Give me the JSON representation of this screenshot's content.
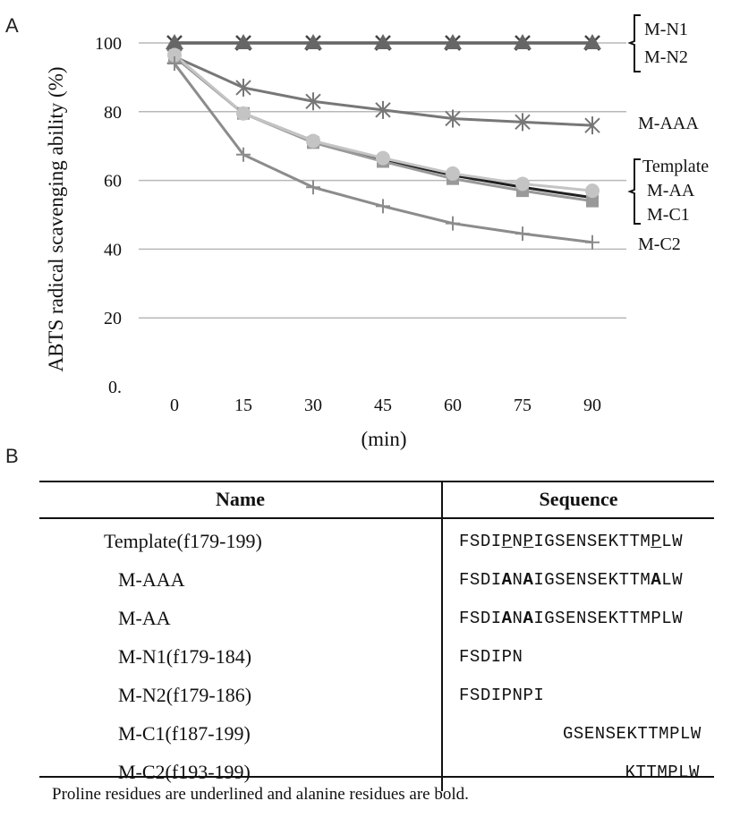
{
  "panel_a_label": "A",
  "panel_b_label": "B",
  "chart_data": {
    "type": "line",
    "xlabel": "(min)",
    "ylabel": "ABTS radical scavenging ability (%)",
    "x": [
      0,
      15,
      30,
      45,
      60,
      75,
      90
    ],
    "ytick_labels": [
      "0.",
      "20",
      "40",
      "60",
      "80",
      "100"
    ],
    "yticks": [
      0,
      20,
      40,
      60,
      80,
      100
    ],
    "ylim": [
      0,
      100
    ],
    "grid": true,
    "series": [
      {
        "key": "mn1",
        "values": [
          100,
          100,
          100,
          100,
          100,
          100,
          100
        ],
        "color": "#444444",
        "marker": "x"
      },
      {
        "key": "mn2",
        "values": [
          100,
          100,
          100,
          100,
          100,
          100,
          100
        ],
        "color": "#666666",
        "marker": "triangle"
      },
      {
        "key": "maaa",
        "values": [
          96,
          87,
          83,
          80.5,
          78,
          77,
          76
        ],
        "color": "#777777",
        "marker": "asterisk"
      },
      {
        "key": "template",
        "values": [
          96,
          79.5,
          71.5,
          66,
          61.5,
          58,
          55
        ],
        "color": "#222222",
        "marker": "none"
      },
      {
        "key": "maa",
        "values": [
          96,
          79.5,
          71,
          65.5,
          60.5,
          57,
          54
        ],
        "color": "#999999",
        "marker": "square"
      },
      {
        "key": "mc1",
        "values": [
          96.5,
          79.5,
          71.5,
          66.5,
          62,
          59,
          57
        ],
        "color": "#c4c4c4",
        "marker": "circle"
      },
      {
        "key": "mc2",
        "values": [
          94,
          67.5,
          58,
          52.5,
          47.5,
          44.5,
          42
        ],
        "color": "#8c8c8c",
        "marker": "plus"
      }
    ],
    "annotations": {
      "mn1": "M-N1",
      "mn2": "M-N2",
      "maaa": "M-AAA",
      "template": "Template",
      "maa": "M-AA",
      "mc1": "M-C1",
      "mc2": "M-C2"
    }
  },
  "table": {
    "headers": [
      "Name",
      "Sequence"
    ],
    "rows": [
      {
        "name": "Template(f179-199)",
        "sequence": "FSDIPNPIGSENSEKTTMPLW"
      },
      {
        "name": "M-AAA",
        "sequence": "FSDIANAIGSENSEKTTMALW"
      },
      {
        "name": "M-AA",
        "sequence": "FSDIANAIGSENSEKTTMPLW"
      },
      {
        "name": "M-N1(f179-184)",
        "sequence": "FSDIPN"
      },
      {
        "name": "M-N2(f179-186)",
        "sequence": "FSDIPNPI"
      },
      {
        "name": "M-C1(f187-199)",
        "sequence": "GSENSEKTTMPLW"
      },
      {
        "name": "M-C2(f193-199)",
        "sequence": "KTTMPLW"
      }
    ]
  },
  "footnote": "Proline residues are underlined and alanine  residues are bold."
}
